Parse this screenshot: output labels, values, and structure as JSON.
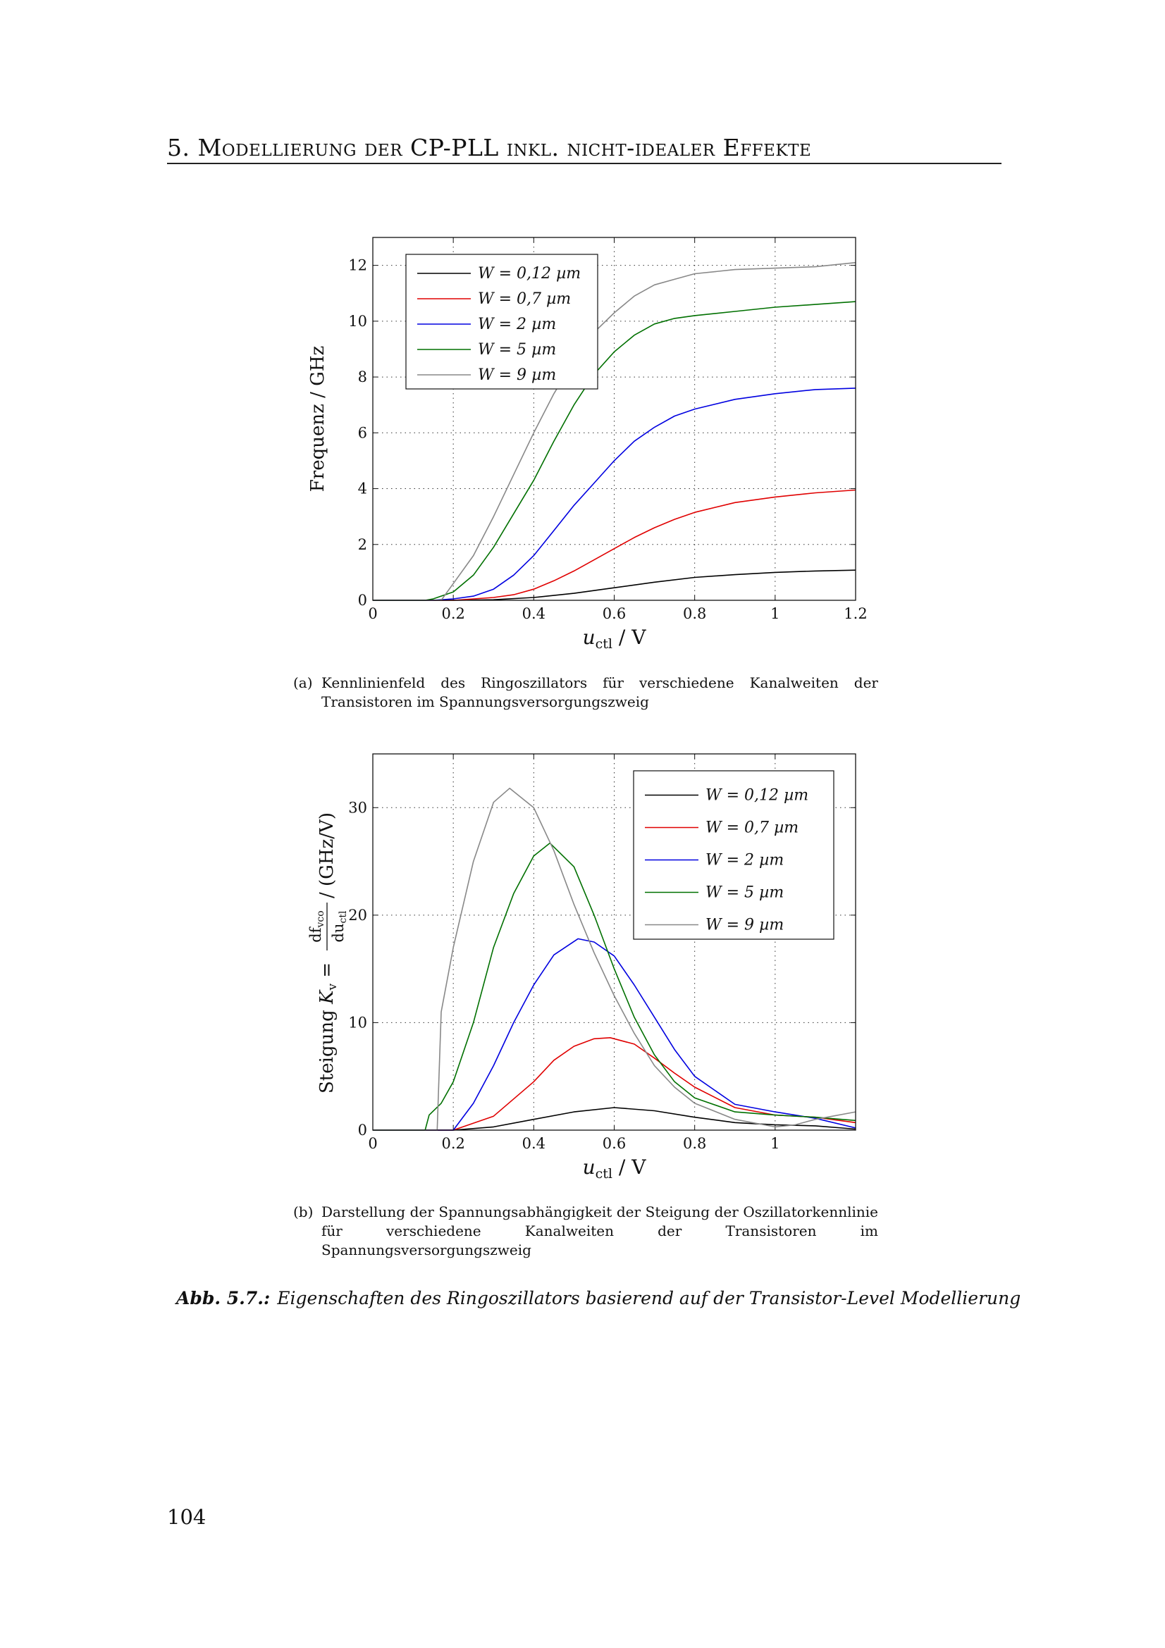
{
  "header": {
    "chapter": "5. Modellierung der CP-PLL inkl. nicht-idealer Effekte"
  },
  "colors": {
    "W012": "#000000",
    "W07": "#e00000",
    "W2": "#0000e0",
    "W5": "#007000",
    "W9": "#888888"
  },
  "chart_data": [
    {
      "type": "line",
      "xlabel": "u_ctl / V",
      "xlabel_main": "u",
      "xlabel_sub": "ctl",
      "xlabel_unit": " / V",
      "ylabel": "Frequenz / GHz",
      "xlim": [
        0,
        1.2
      ],
      "ylim": [
        0,
        13
      ],
      "xticks": [
        "0",
        "0.2",
        "0.4",
        "0.6",
        "0.8",
        "1",
        "1.2"
      ],
      "yticks": [
        "0",
        "2",
        "4",
        "6",
        "8",
        "10",
        "12"
      ],
      "grid": true,
      "legend_position": "top-left",
      "series": [
        {
          "name": "W = 0,12 µm",
          "color": "#000000",
          "x": [
            0,
            0.15,
            0.2,
            0.3,
            0.4,
            0.5,
            0.6,
            0.7,
            0.8,
            0.9,
            1.0,
            1.1,
            1.2
          ],
          "y": [
            0,
            0,
            0,
            0.02,
            0.1,
            0.25,
            0.45,
            0.65,
            0.82,
            0.92,
            1.0,
            1.05,
            1.08
          ]
        },
        {
          "name": "W = 0,7 µm",
          "color": "#e00000",
          "x": [
            0,
            0.15,
            0.2,
            0.3,
            0.35,
            0.4,
            0.45,
            0.5,
            0.55,
            0.6,
            0.65,
            0.7,
            0.75,
            0.8,
            0.9,
            1.0,
            1.1,
            1.2
          ],
          "y": [
            0,
            0,
            0,
            0.1,
            0.2,
            0.4,
            0.7,
            1.05,
            1.45,
            1.85,
            2.25,
            2.6,
            2.9,
            3.15,
            3.5,
            3.7,
            3.85,
            3.95
          ]
        },
        {
          "name": "W = 2 µm",
          "color": "#0000e0",
          "x": [
            0,
            0.15,
            0.2,
            0.25,
            0.3,
            0.35,
            0.4,
            0.45,
            0.5,
            0.55,
            0.6,
            0.65,
            0.7,
            0.75,
            0.8,
            0.9,
            1.0,
            1.1,
            1.2
          ],
          "y": [
            0,
            0,
            0.05,
            0.15,
            0.4,
            0.9,
            1.6,
            2.5,
            3.4,
            4.2,
            5.0,
            5.7,
            6.2,
            6.6,
            6.85,
            7.2,
            7.4,
            7.55,
            7.6
          ]
        },
        {
          "name": "W = 5 µm",
          "color": "#007000",
          "x": [
            0,
            0.13,
            0.15,
            0.2,
            0.25,
            0.3,
            0.35,
            0.4,
            0.45,
            0.5,
            0.55,
            0.6,
            0.65,
            0.7,
            0.75,
            0.8,
            0.9,
            1.0,
            1.1,
            1.2
          ],
          "y": [
            0,
            0,
            0.05,
            0.3,
            0.9,
            1.9,
            3.1,
            4.3,
            5.7,
            7.0,
            8.1,
            8.9,
            9.5,
            9.9,
            10.1,
            10.2,
            10.35,
            10.5,
            10.6,
            10.7
          ]
        },
        {
          "name": "W = 9 µm",
          "color": "#888888",
          "x": [
            0,
            0.17,
            0.2,
            0.25,
            0.3,
            0.35,
            0.4,
            0.45,
            0.5,
            0.55,
            0.6,
            0.65,
            0.7,
            0.75,
            0.8,
            0.9,
            1.0,
            1.1,
            1.2
          ],
          "y": [
            0,
            0,
            0.6,
            1.6,
            3.0,
            4.5,
            6.0,
            7.4,
            8.6,
            9.6,
            10.3,
            10.9,
            11.3,
            11.5,
            11.7,
            11.85,
            11.9,
            11.95,
            12.1
          ]
        }
      ]
    },
    {
      "type": "line",
      "xlabel": "u_ctl / V",
      "xlabel_main": "u",
      "xlabel_sub": "ctl",
      "xlabel_unit": " / V",
      "ylabel": "Steigung K_v = df_vco/du_ctl / (GHz/V)",
      "ylabel_parts": {
        "prefix": "Steigung ",
        "k": "K",
        "k_sub": "v",
        "eq": " = ",
        "num": "df",
        "num_sub": "vco",
        "den": "du",
        "den_sub": "ctl",
        "unit": " / (GHz/V)"
      },
      "xlim": [
        0,
        1.2
      ],
      "ylim": [
        0,
        35
      ],
      "xticks": [
        "0",
        "0.2",
        "0.4",
        "0.6",
        "0.8",
        "1"
      ],
      "yticks": [
        "0",
        "10",
        "20",
        "30"
      ],
      "grid": true,
      "legend_position": "top-right",
      "series": [
        {
          "name": "W = 0,12 µm",
          "color": "#000000",
          "x": [
            0,
            0.2,
            0.3,
            0.4,
            0.5,
            0.6,
            0.7,
            0.8,
            0.9,
            1.0,
            1.1,
            1.2
          ],
          "y": [
            0,
            0,
            0.3,
            1.0,
            1.7,
            2.1,
            1.8,
            1.2,
            0.7,
            0.5,
            0.4,
            0.1
          ]
        },
        {
          "name": "W = 0,7 µm",
          "color": "#e00000",
          "x": [
            0,
            0.2,
            0.3,
            0.4,
            0.45,
            0.5,
            0.55,
            0.59,
            0.65,
            0.7,
            0.75,
            0.8,
            0.9,
            1.0,
            1.1,
            1.2
          ],
          "y": [
            0,
            0,
            1.3,
            4.5,
            6.5,
            7.8,
            8.5,
            8.6,
            8.0,
            6.7,
            5.3,
            4.0,
            2.1,
            1.4,
            1.2,
            0.7
          ]
        },
        {
          "name": "W = 2 µm",
          "color": "#0000e0",
          "x": [
            0,
            0.2,
            0.25,
            0.3,
            0.35,
            0.4,
            0.45,
            0.51,
            0.55,
            0.6,
            0.65,
            0.7,
            0.75,
            0.8,
            0.9,
            1.0,
            1.1,
            1.2
          ],
          "y": [
            0,
            0,
            2.5,
            6,
            10,
            13.5,
            16.3,
            17.8,
            17.5,
            16.2,
            13.5,
            10.5,
            7.5,
            5.0,
            2.4,
            1.7,
            1.1,
            0.2
          ]
        },
        {
          "name": "W = 5 µm",
          "color": "#007000",
          "x": [
            0,
            0.13,
            0.14,
            0.17,
            0.2,
            0.25,
            0.3,
            0.35,
            0.4,
            0.44,
            0.5,
            0.55,
            0.6,
            0.65,
            0.7,
            0.75,
            0.8,
            0.9,
            1.0,
            1.1,
            1.2
          ],
          "y": [
            0,
            0,
            1.4,
            2.5,
            4.5,
            10,
            17,
            22,
            25.5,
            26.7,
            24.5,
            20,
            15,
            10.5,
            7,
            4.5,
            3,
            1.7,
            1.4,
            1.2,
            0.9
          ]
        },
        {
          "name": "W = 9 µm",
          "color": "#888888",
          "x": [
            0,
            0.16,
            0.17,
            0.2,
            0.25,
            0.3,
            0.34,
            0.4,
            0.45,
            0.5,
            0.55,
            0.6,
            0.65,
            0.7,
            0.75,
            0.8,
            0.9,
            1.0,
            1.05,
            1.1,
            1.2
          ],
          "y": [
            0,
            0,
            11,
            17,
            25,
            30.5,
            31.8,
            30,
            26,
            21,
            16.5,
            12.5,
            9,
            6,
            4,
            2.5,
            1,
            0.3,
            0.5,
            1.0,
            1.7
          ]
        }
      ]
    }
  ],
  "captions": {
    "a_label": "(a)",
    "a_text": "Kennlinienfeld des Ringoszillators für verschiedene Kanalweiten der Transistoren im Spannungsversorgungszweig",
    "b_label": "(b)",
    "b_text": "Darstellung der Spannungsabhängigkeit der Steigung der Oszillatorkennlinie für verschiedene Kanalweiten der Transistoren im Spannungsversorgungszweig",
    "figure_label": "Abb. 5.7.:",
    "figure_text": "Eigenschaften des Ringoszillators basierend auf der Transistor-Level Modellierung"
  },
  "page_number": "104"
}
